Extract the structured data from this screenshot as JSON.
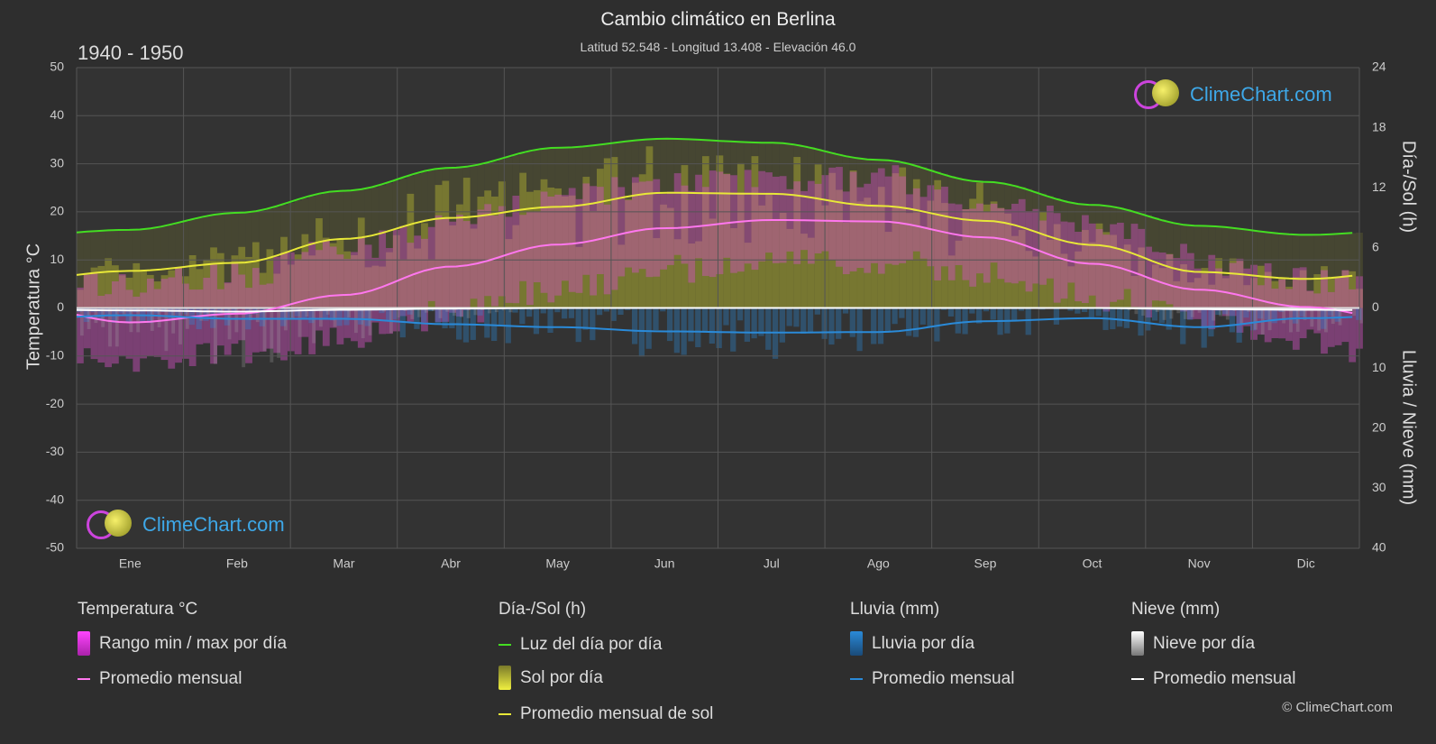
{
  "title": "Cambio climático en Berlina",
  "subtitle": "Latitud 52.548 - Longitud 13.408 - Elevación 46.0",
  "period": "1940 - 1950",
  "logo_text": "ClimeChart.com",
  "copyright": "© ClimeChart.com",
  "axes": {
    "left_title": "Temperatura °C",
    "right_top_title": "Día-/Sol (h)",
    "right_bottom_title": "Lluvia / Nieve (mm)"
  },
  "legend": {
    "temp": {
      "head": "Temperatura °C",
      "range": "Rango min / max por día",
      "avg": "Promedio mensual"
    },
    "sun": {
      "head": "Día-/Sol (h)",
      "daylight": "Luz del día por día",
      "sun": "Sol por día",
      "avg": "Promedio mensual de sol"
    },
    "rain": {
      "head": "Lluvia (mm)",
      "rain": "Lluvia por día",
      "avg": "Promedio mensual"
    },
    "snow": {
      "head": "Nieve (mm)",
      "snow": "Nieve por día",
      "avg": "Promedio mensual"
    }
  },
  "colors": {
    "background": "#2e2e2e",
    "grid": "#555555",
    "daylight": "#44dd22",
    "sun_avg": "#e8e838",
    "sun_fill": "#a8a830",
    "temp_avg": "#ff77ee",
    "temp_range": "#d050c0",
    "rain": "#2a8ad8",
    "snow": "#aaaaaa",
    "snow_avg": "#ffffff"
  },
  "chart_data": {
    "type": "line",
    "categories": [
      "Ene",
      "Feb",
      "Mar",
      "Abr",
      "May",
      "Jun",
      "Jul",
      "Ago",
      "Sep",
      "Oct",
      "Nov",
      "Dic"
    ],
    "y_left": {
      "label": "Temperatura °C",
      "range": [
        -50,
        50
      ],
      "ticks": [
        50,
        40,
        30,
        20,
        10,
        0,
        -10,
        -20,
        -30,
        -40,
        -50
      ]
    },
    "y_right_top": {
      "label": "Día-/Sol (h)",
      "range": [
        0,
        24
      ],
      "ticks": [
        24,
        18,
        12,
        6,
        0
      ]
    },
    "y_right_bottom": {
      "label": "Lluvia / Nieve (mm)",
      "range": [
        0,
        40
      ],
      "ticks": [
        0,
        10,
        20,
        30,
        40
      ]
    },
    "grid": true,
    "series": [
      {
        "name": "Luz del día por día",
        "axis": "hours",
        "values": [
          7.8,
          9.5,
          11.7,
          14.0,
          16.0,
          16.9,
          16.5,
          14.8,
          12.6,
          10.3,
          8.2,
          7.3
        ]
      },
      {
        "name": "Promedio mensual de sol",
        "axis": "hours",
        "values": [
          3.7,
          4.5,
          6.9,
          9.0,
          10.1,
          11.5,
          11.4,
          10.2,
          8.7,
          6.3,
          3.6,
          2.9
        ]
      },
      {
        "name": "Promedio mensual",
        "kind": "temperature",
        "axis": "temperature",
        "values": [
          -3.0,
          -1.2,
          2.7,
          8.6,
          13.2,
          16.6,
          18.3,
          18.0,
          14.7,
          9.2,
          3.8,
          0.2
        ]
      },
      {
        "name": "Promedio mensual",
        "kind": "rain",
        "axis": "precip",
        "values": [
          1.2,
          1.8,
          1.8,
          2.7,
          3.2,
          3.9,
          4.1,
          4.0,
          2.2,
          1.7,
          3.2,
          1.7
        ]
      },
      {
        "name": "Promedio mensual",
        "kind": "snow",
        "axis": "precip",
        "values": [
          0.4,
          0.6,
          0.3,
          0.1,
          0.0,
          0.0,
          0.0,
          0.0,
          0.0,
          0.0,
          0.2,
          0.3
        ]
      }
    ],
    "daily_ranges": {
      "temp_min": [
        -8,
        -6,
        -3,
        2,
        7,
        11,
        13,
        13,
        10,
        5,
        0,
        -4
      ],
      "temp_max": [
        2,
        4,
        9,
        15,
        20,
        23,
        24,
        24,
        20,
        14,
        7,
        3
      ]
    }
  }
}
